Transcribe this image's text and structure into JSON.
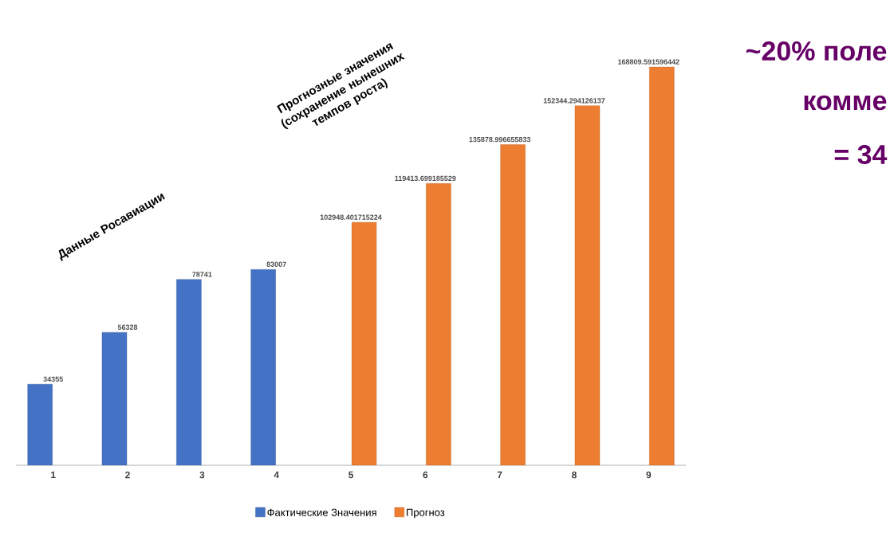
{
  "chart_data": {
    "type": "bar",
    "categories": [
      "1",
      "2",
      "3",
      "4",
      "5",
      "6",
      "7",
      "8",
      "9"
    ],
    "series": [
      {
        "name": "Фактические Значения",
        "color": "#4472c4",
        "values": [
          34355,
          56328,
          78741,
          83007,
          null,
          null,
          null,
          null,
          null
        ],
        "value_labels": [
          "34355",
          "56328",
          "78741",
          "83007",
          null,
          null,
          null,
          null,
          null
        ]
      },
      {
        "name": "Прогноз",
        "color": "#ed7d31",
        "values": [
          null,
          null,
          null,
          null,
          102948.401715224,
          119413.699185529,
          135878.996655833,
          152344.294126137,
          168809.591596442
        ],
        "value_labels": [
          null,
          null,
          null,
          null,
          "102948.401715224",
          "119413.699185529",
          "135878.996655833",
          "152344.294126137",
          "168809.591596442"
        ]
      }
    ],
    "tick_labels": "x",
    "legend": "bottom",
    "annotations": [
      "Данные Росавиации",
      "Прогнозные значения (сохранение нынешних темпов роста)",
      "~20% поле",
      "комме",
      "= 34"
    ]
  }
}
